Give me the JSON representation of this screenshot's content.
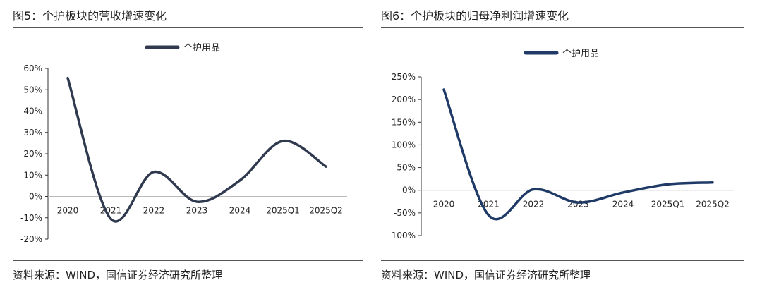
{
  "chart_data": [
    {
      "type": "line",
      "title": "图5：个护板块的营收增速变化",
      "source": "资料来源：WIND，国信证券经济研究所整理",
      "categories": [
        "2020",
        "2021",
        "2022",
        "2023",
        "2024",
        "2025Q1",
        "2025Q2"
      ],
      "yticks": [
        "60%",
        "50%",
        "40%",
        "30%",
        "20%",
        "10%",
        "0%",
        "-10%",
        "-20%"
      ],
      "ylim": [
        -20,
        60
      ],
      "legend_position": "top",
      "color": "#2f3a4f",
      "series": [
        {
          "name": "个护用品",
          "values": [
            55.5,
            -10.5,
            11.5,
            -2.5,
            7.5,
            26,
            14
          ]
        }
      ]
    },
    {
      "type": "line",
      "title": "图6：个护板块的归母净利润增速变化",
      "source": "资料来源：WIND，国信证券经济研究所整理",
      "categories": [
        "2020",
        "2021",
        "2022",
        "2023",
        "2024",
        "2025Q1",
        "2025Q2"
      ],
      "yticks": [
        "250%",
        "200%",
        "150%",
        "100%",
        "50%",
        "0%",
        "-50%",
        "-100%"
      ],
      "ylim": [
        -100,
        250
      ],
      "legend_position": "top",
      "color": "#1f3a66",
      "series": [
        {
          "name": "个护用品",
          "values": [
            222,
            -55,
            2,
            -27,
            -5,
            13,
            17
          ]
        }
      ]
    }
  ]
}
